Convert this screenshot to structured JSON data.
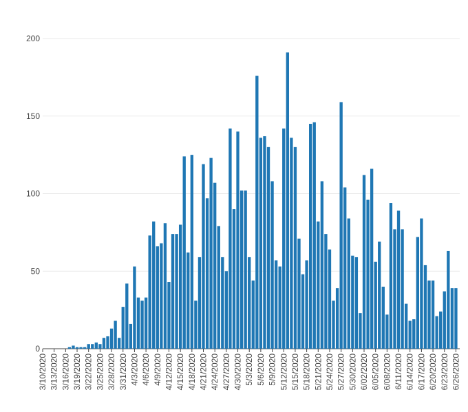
{
  "chart_data": {
    "type": "bar",
    "title": "",
    "xlabel": "",
    "ylabel": "",
    "ylim": [
      0,
      200
    ],
    "yticks": [
      0,
      50,
      100,
      150,
      200
    ],
    "grid": true,
    "bar_color": "#1f77b4",
    "grid_color": "#e9e9e9",
    "x_start": "2020-03-10",
    "x_end": "2020-06-27",
    "tick_dates": [
      "3/10/2020",
      "3/13/2020",
      "3/16/2020",
      "3/19/2020",
      "3/22/2020",
      "3/25/2020",
      "3/28/2020",
      "3/31/2020",
      "4/3/2020",
      "4/6/2020",
      "4/9/2020",
      "4/12/2020",
      "4/15/2020",
      "4/18/2020",
      "4/21/2020",
      "4/24/2020",
      "4/27/2020",
      "4/30/2020",
      "5/3/2020",
      "5/6/2020",
      "5/9/2020",
      "5/12/2020",
      "5/15/2020",
      "5/18/2020",
      "5/21/2020",
      "5/24/2020",
      "5/27/2020",
      "5/30/2020",
      "6/02/2020",
      "6/05/2020",
      "6/08/2020",
      "6/11/2020",
      "6/14/2020",
      "6/17/2020",
      "6/20/2020",
      "6/23/2020",
      "6/26/2020"
    ],
    "values": [
      0,
      0,
      0,
      0,
      0,
      0,
      0,
      1,
      2,
      1,
      1,
      1,
      3,
      3,
      4,
      3,
      7,
      8,
      13,
      18,
      7,
      27,
      42,
      16,
      53,
      33,
      31,
      33,
      73,
      82,
      66,
      68,
      81,
      43,
      74,
      74,
      80,
      124,
      62,
      125,
      31,
      59,
      119,
      97,
      123,
      107,
      79,
      59,
      50,
      142,
      90,
      140,
      102,
      102,
      59,
      44,
      176,
      136,
      137,
      130,
      108,
      57,
      53,
      142,
      191,
      136,
      130,
      71,
      48,
      57,
      145,
      146,
      82,
      108,
      74,
      64,
      31,
      39,
      159,
      104,
      84,
      60,
      59,
      23,
      112,
      96,
      116,
      56,
      69,
      40,
      22,
      94,
      77,
      89,
      77,
      29,
      18,
      19,
      72,
      84,
      54,
      44,
      44,
      21,
      24,
      37,
      63,
      39,
      39
    ]
  }
}
